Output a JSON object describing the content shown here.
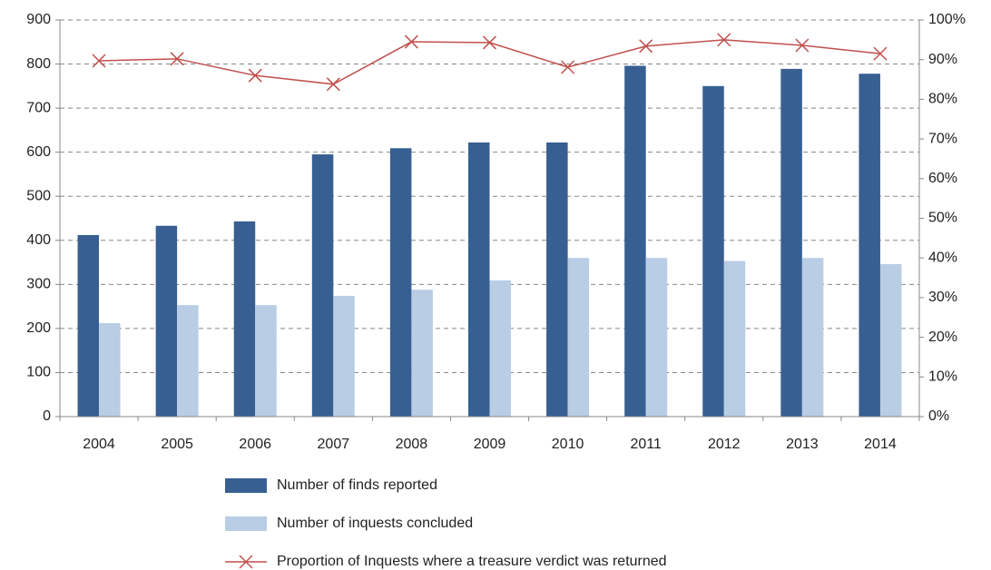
{
  "chart_data": {
    "type": "bar",
    "categories": [
      "2004",
      "2005",
      "2006",
      "2007",
      "2008",
      "2009",
      "2010",
      "2011",
      "2012",
      "2013",
      "2014"
    ],
    "series": [
      {
        "name": "Number of finds reported",
        "type": "bar",
        "color": "#375f92",
        "values": [
          412,
          433,
          443,
          595,
          609,
          622,
          622,
          796,
          750,
          789,
          778
        ]
      },
      {
        "name": "Number of inquests concluded",
        "type": "bar",
        "color": "#b9cde5",
        "values": [
          212,
          253,
          253,
          274,
          288,
          309,
          360,
          360,
          353,
          360,
          346
        ]
      },
      {
        "name": "Proportion of Inquests where a treasure verdict was returned",
        "type": "line",
        "axis": "y2",
        "color": "#c0504d",
        "values": [
          89.7,
          90.2,
          86.0,
          83.8,
          94.5,
          94.3,
          88.1,
          93.4,
          95.0,
          93.6,
          91.5
        ]
      }
    ],
    "ylim": [
      0,
      900
    ],
    "yticks": [
      0,
      100,
      200,
      300,
      400,
      500,
      600,
      700,
      800,
      900
    ],
    "y2lim": [
      0,
      100
    ],
    "y2ticks": [
      {
        "value": 0,
        "label": "0%"
      },
      {
        "value": 10,
        "label": "10%"
      },
      {
        "value": 20,
        "label": "20%"
      },
      {
        "value": 30,
        "label": "30%"
      },
      {
        "value": 40,
        "label": "40%"
      },
      {
        "value": 50,
        "label": "50%"
      },
      {
        "value": 60,
        "label": "60%"
      },
      {
        "value": 70,
        "label": "70%"
      },
      {
        "value": 80,
        "label": "80%"
      },
      {
        "value": 90,
        "label": "90%"
      },
      {
        "value": 100,
        "label": "100%"
      }
    ],
    "grid": true
  }
}
